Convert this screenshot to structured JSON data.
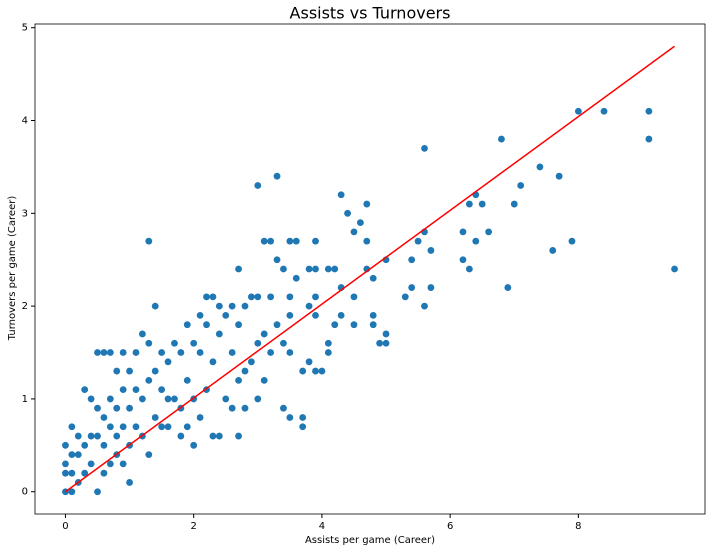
{
  "chart_data": {
    "type": "scatter",
    "title": "Assists vs Turnovers",
    "x_label": "Assists per game (Career)",
    "y_label": "Turnovers per game (Career)",
    "xlim": [
      -0.475,
      9.975
    ],
    "ylim": [
      -0.24,
      5.04
    ],
    "xticks": [
      0,
      2,
      4,
      6,
      8
    ],
    "yticks": [
      0,
      1,
      2,
      3,
      4,
      5
    ],
    "series": [
      {
        "type": "scatter",
        "color": "#1f77b4",
        "x": [
          9.5,
          9.1,
          9.1,
          8.4,
          8.0,
          7.9,
          7.7,
          7.6,
          7.4,
          7.1,
          7.0,
          6.9,
          6.8,
          6.6,
          6.5,
          6.4,
          6.4,
          6.3,
          6.3,
          6.2,
          6.2,
          5.7,
          5.7,
          5.6,
          5.6,
          5.6,
          5.5,
          5.4,
          5.4,
          5.3,
          5.0,
          5.0,
          5.0,
          4.9,
          4.8,
          4.8,
          4.8,
          4.7,
          4.7,
          4.7,
          4.6,
          4.5,
          4.5,
          4.5,
          4.4,
          4.3,
          4.3,
          4.3,
          4.2,
          4.2,
          4.1,
          4.1,
          4.1,
          4.0,
          3.9,
          3.9,
          3.9,
          3.9,
          3.9,
          3.8,
          3.8,
          3.8,
          3.7,
          3.7,
          3.7,
          3.6,
          3.6,
          3.5,
          3.5,
          3.5,
          3.5,
          3.5,
          3.4,
          3.4,
          3.3,
          3.3,
          3.3,
          3.2,
          3.2,
          3.2,
          3.1,
          3.1,
          3.1,
          3.0,
          3.0,
          3.0,
          3.0,
          2.9,
          2.9,
          2.8,
          2.8,
          2.8,
          2.7,
          2.7,
          2.7,
          2.7,
          2.6,
          2.6,
          2.5,
          2.5,
          2.4,
          2.4,
          2.4,
          2.3,
          2.3,
          2.3,
          2.2,
          2.2,
          2.2,
          2.1,
          2.1,
          2.1,
          2.0,
          2.0,
          2.0,
          1.9,
          1.9,
          1.8,
          1.8,
          1.8,
          1.7,
          1.7,
          1.6,
          1.6,
          1.5,
          1.5,
          1.4,
          1.4,
          1.4,
          1.3,
          1.3,
          1.3,
          1.3,
          1.2,
          1.2,
          1.2,
          1.1,
          1.1,
          1.0,
          1.0,
          1.0,
          1.0,
          0.9,
          0.9,
          0.9,
          0.9,
          0.8,
          0.8,
          0.8,
          0.7,
          0.7,
          0.7,
          0.7,
          0.6,
          0.6,
          0.6,
          0.5,
          0.5,
          0.5,
          0.5,
          0.4,
          0.4,
          0.4,
          0.3,
          0.3,
          0.3,
          0.2,
          0.2,
          0.2,
          0.1,
          0.1,
          0.1,
          0.1,
          0.0,
          0.0,
          0.0,
          0.0,
          1.5,
          1.6,
          1.1,
          0.6,
          0.8,
          1.9,
          2.6,
          3.4
        ],
        "values": [
          2.4,
          4.1,
          3.8,
          4.1,
          4.1,
          2.7,
          3.4,
          2.6,
          3.5,
          3.3,
          3.1,
          2.2,
          3.8,
          2.8,
          3.1,
          3.2,
          2.7,
          3.1,
          2.4,
          2.8,
          2.5,
          2.6,
          2.2,
          3.7,
          2.8,
          2.0,
          2.7,
          2.2,
          2.5,
          2.1,
          2.5,
          1.7,
          1.6,
          1.6,
          2.3,
          1.9,
          1.8,
          3.1,
          2.7,
          2.4,
          2.9,
          2.8,
          2.1,
          1.8,
          3.0,
          3.2,
          2.2,
          1.9,
          2.4,
          1.8,
          2.4,
          1.6,
          1.5,
          1.3,
          2.7,
          2.4,
          2.1,
          1.9,
          1.3,
          2.4,
          2.0,
          1.4,
          1.3,
          0.8,
          0.7,
          2.7,
          2.3,
          2.7,
          2.1,
          1.9,
          1.5,
          0.8,
          2.4,
          1.6,
          3.4,
          2.5,
          1.8,
          2.7,
          2.1,
          1.5,
          2.7,
          1.7,
          1.2,
          3.3,
          2.1,
          1.6,
          1.0,
          2.1,
          1.4,
          2.0,
          1.3,
          0.9,
          2.4,
          1.8,
          1.2,
          0.6,
          2.0,
          1.5,
          1.9,
          1.0,
          2.0,
          1.7,
          0.6,
          2.1,
          1.4,
          0.6,
          2.1,
          1.8,
          1.1,
          1.9,
          1.5,
          0.8,
          1.6,
          1.0,
          0.5,
          1.8,
          1.2,
          1.5,
          0.9,
          0.6,
          1.6,
          1.0,
          1.4,
          0.7,
          1.5,
          1.1,
          2.0,
          1.3,
          0.8,
          2.7,
          1.6,
          1.2,
          0.4,
          1.7,
          1.0,
          0.6,
          1.5,
          1.1,
          1.3,
          0.9,
          0.5,
          0.1,
          1.5,
          1.1,
          0.7,
          0.3,
          1.3,
          0.9,
          0.6,
          1.5,
          1.0,
          0.7,
          0.3,
          1.5,
          0.8,
          0.5,
          1.5,
          0.9,
          0.6,
          0.0,
          1.0,
          0.6,
          0.3,
          1.1,
          0.5,
          0.2,
          0.6,
          0.4,
          0.1,
          0.7,
          0.4,
          0.2,
          0.0,
          0.5,
          0.3,
          0.2,
          0.0,
          0.7,
          1.0,
          0.7,
          0.2,
          0.4,
          0.7,
          0.9,
          0.9
        ]
      },
      {
        "type": "line",
        "color": "#ff0000",
        "x": [
          0,
          9.5
        ],
        "values": [
          0.0,
          4.8
        ]
      }
    ]
  }
}
